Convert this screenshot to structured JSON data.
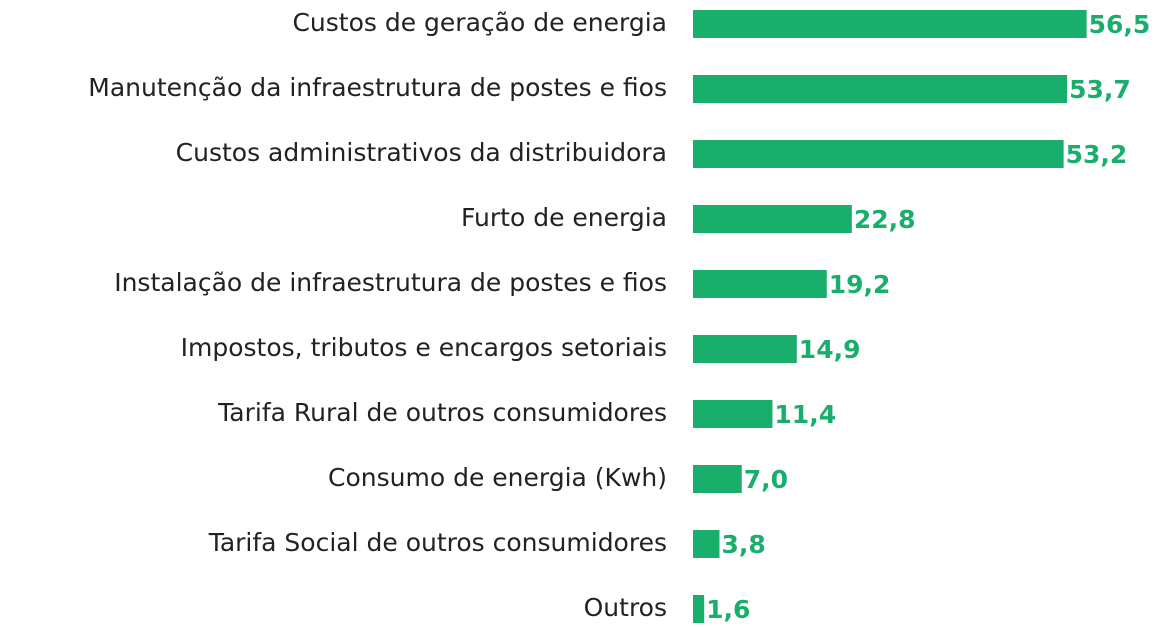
{
  "chart_data": {
    "type": "bar",
    "orientation": "horizontal",
    "categories": [
      "Custos de geração de energia",
      "Manutenção da infraestrutura de postes e fios",
      "Custos administrativos da distribuidora",
      "Furto de energia",
      "Instalação de infraestrutura de postes e fios",
      "Impostos, tributos e encargos setoriais",
      "Tarifa Rural de outros consumidores",
      "Consumo de energia (Kwh)",
      "Tarifa Social de outros consumidores",
      "Outros"
    ],
    "values": [
      56.5,
      53.7,
      53.2,
      22.8,
      19.2,
      14.9,
      11.4,
      7.0,
      3.8,
      1.6
    ],
    "value_labels": [
      "56,5",
      "53,7",
      "53,2",
      "22,8",
      "19,2",
      "14,9",
      "11,4",
      "7,0",
      "3,8",
      "1,6"
    ],
    "color": "#1aae6c",
    "xlim": [
      0,
      60
    ]
  }
}
